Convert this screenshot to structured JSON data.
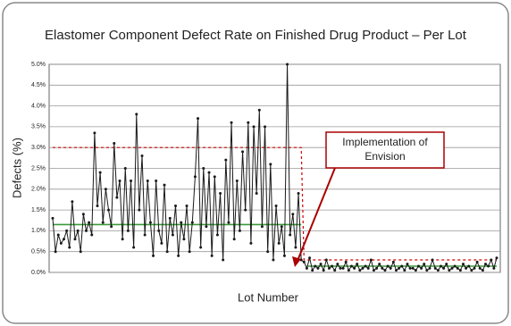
{
  "chart_data": {
    "type": "line",
    "title": "Elastomer Component Defect Rate on Finished Drug Product – Per Lot",
    "x_label": "Lot Number",
    "y_label": "Defects (%)",
    "annotation": [
      "Implementation of",
      "Envision"
    ],
    "ylim": [
      0,
      5
    ],
    "yticks": [
      {
        "value": 0,
        "label": "0.0%"
      },
      {
        "value": 0.5,
        "label": "0.5%"
      },
      {
        "value": 1,
        "label": "1.0%"
      },
      {
        "value": 1.5,
        "label": "1.5%"
      },
      {
        "value": 2,
        "label": "2.0%"
      },
      {
        "value": 2.5,
        "label": "2.5%"
      },
      {
        "value": 3,
        "label": "3.0%"
      },
      {
        "value": 3.5,
        "label": "3.5%"
      },
      {
        "value": 4,
        "label": "4.0%"
      },
      {
        "value": 4.5,
        "label": "4.5%"
      },
      {
        "value": 5,
        "label": "5.0%"
      }
    ],
    "grid": true,
    "series": [
      {
        "color": "#1a1a1a",
        "markers": true,
        "style": "solid",
        "values": [
          1.3,
          0.5,
          0.9,
          0.7,
          0.8,
          1.0,
          0.6,
          1.7,
          0.8,
          1.0,
          0.5,
          1.4,
          1.0,
          1.2,
          0.9,
          3.35,
          1.6,
          2.4,
          1.2,
          2.0,
          1.5,
          1.1,
          3.1,
          1.8,
          2.2,
          0.8,
          2.5,
          1.0,
          2.2,
          0.6,
          3.8,
          1.5,
          2.8,
          0.9,
          2.2,
          1.2,
          0.4,
          2.2,
          1.0,
          0.7,
          2.1,
          0.5,
          1.3,
          0.9,
          1.6,
          0.4,
          1.2,
          0.8,
          1.6,
          0.5,
          1.2,
          2.3,
          3.7,
          0.6,
          2.5,
          1.1,
          2.4,
          0.4,
          2.3,
          0.9,
          1.9,
          0.3,
          2.7,
          1.2,
          3.6,
          0.8,
          2.2,
          1.0,
          2.9,
          1.5,
          3.6,
          0.7,
          3.5,
          1.9,
          3.9,
          1.1,
          3.5,
          0.5,
          2.6,
          0.3,
          1.6,
          0.7,
          1.1,
          0.4,
          5.0,
          0.9,
          1.4,
          0.6,
          1.9,
          0.3,
          0.25,
          0.1,
          0.35,
          0.05,
          0.15,
          0.1,
          0.2,
          0.05,
          0.3,
          0.1,
          0.15,
          0.05,
          0.2,
          0.1,
          0.1,
          0.25,
          0.05,
          0.15,
          0.1,
          0.2,
          0.05,
          0.1,
          0.15,
          0.1,
          0.3,
          0.05,
          0.1,
          0.2,
          0.1,
          0.05,
          0.15,
          0.1,
          0.25,
          0.05,
          0.1,
          0.15,
          0.05,
          0.2,
          0.1,
          0.1,
          0.05,
          0.15,
          0.1,
          0.2,
          0.05,
          0.1,
          0.3,
          0.1,
          0.05,
          0.15,
          0.1,
          0.2,
          0.05,
          0.1,
          0.15,
          0.1,
          0.05,
          0.2,
          0.1,
          0.15,
          0.05,
          0.1,
          0.25,
          0.1,
          0.05,
          0.2,
          0.15,
          0.3,
          0.1,
          0.35
        ]
      },
      {
        "color": "#3a9a3a",
        "markers": false,
        "style": "solid",
        "values": [
          1.15,
          1.15,
          1.15,
          1.15,
          1.15,
          1.15,
          1.15,
          1.15,
          1.15,
          1.15,
          1.15,
          1.15,
          1.15,
          1.15,
          1.15,
          1.15,
          1.15,
          1.15,
          1.15,
          1.15,
          1.15,
          1.15,
          1.15,
          1.15,
          1.15,
          1.15,
          1.15,
          1.15,
          1.15,
          1.15,
          1.15,
          1.15,
          1.15,
          1.15,
          1.15,
          1.15,
          1.15,
          1.15,
          1.15,
          1.15,
          1.15,
          1.15,
          1.15,
          1.15,
          1.15,
          1.15,
          1.15,
          1.15,
          1.15,
          1.15,
          1.15,
          1.15,
          1.15,
          1.15,
          1.15,
          1.15,
          1.15,
          1.15,
          1.15,
          1.15,
          1.15,
          1.15,
          1.15,
          1.15,
          1.15,
          1.15,
          1.15,
          1.15,
          1.15,
          1.15,
          1.15,
          1.15,
          1.15,
          1.15,
          1.15,
          1.15,
          1.15,
          1.15,
          1.15,
          1.15,
          1.15,
          1.15,
          1.15,
          1.15,
          1.15,
          1.15,
          1.15,
          1.15,
          1.15,
          1.15,
          null,
          0.15,
          0.15,
          0.15,
          0.15,
          0.15,
          0.15,
          0.15,
          0.15,
          0.15,
          0.15,
          0.15,
          0.15,
          0.15,
          0.15,
          0.15,
          0.15,
          0.15,
          0.15,
          0.15,
          0.15,
          0.15,
          0.15,
          0.15,
          0.15,
          0.15,
          0.15,
          0.15,
          0.15,
          0.15,
          0.15,
          0.15,
          0.15,
          0.15,
          0.15,
          0.15,
          0.15,
          0.15,
          0.15,
          0.15,
          0.15,
          0.15,
          0.15,
          0.15,
          0.15,
          0.15,
          0.15,
          0.15,
          0.15,
          0.15,
          0.15,
          0.15,
          0.15,
          0.15,
          0.15,
          0.15,
          0.15,
          0.15,
          0.15,
          0.15,
          0.15,
          0.15,
          0.15,
          0.15,
          0.15,
          0.15,
          0.15,
          0.15,
          0.15,
          0.15
        ]
      },
      {
        "color": "#d40000",
        "markers": false,
        "style": "dashed",
        "values": [
          3.0,
          3.0,
          3.0,
          3.0,
          3.0,
          3.0,
          3.0,
          3.0,
          3.0,
          3.0,
          3.0,
          3.0,
          3.0,
          3.0,
          3.0,
          3.0,
          3.0,
          3.0,
          3.0,
          3.0,
          3.0,
          3.0,
          3.0,
          3.0,
          3.0,
          3.0,
          3.0,
          3.0,
          3.0,
          3.0,
          3.0,
          3.0,
          3.0,
          3.0,
          3.0,
          3.0,
          3.0,
          3.0,
          3.0,
          3.0,
          3.0,
          3.0,
          3.0,
          3.0,
          3.0,
          3.0,
          3.0,
          3.0,
          3.0,
          3.0,
          3.0,
          3.0,
          3.0,
          3.0,
          3.0,
          3.0,
          3.0,
          3.0,
          3.0,
          3.0,
          3.0,
          3.0,
          3.0,
          3.0,
          3.0,
          3.0,
          3.0,
          3.0,
          3.0,
          3.0,
          3.0,
          3.0,
          3.0,
          3.0,
          3.0,
          3.0,
          3.0,
          3.0,
          3.0,
          3.0,
          3.0,
          3.0,
          3.0,
          3.0,
          3.0,
          3.0,
          3.0,
          3.0,
          3.0,
          3.0,
          0.3,
          0.3,
          0.3,
          0.3,
          0.3,
          0.3,
          0.3,
          0.3,
          0.3,
          0.3,
          0.3,
          0.3,
          0.3,
          0.3,
          0.3,
          0.3,
          0.3,
          0.3,
          0.3,
          0.3,
          0.3,
          0.3,
          0.3,
          0.3,
          0.3,
          0.3,
          0.3,
          0.3,
          0.3,
          0.3,
          0.3,
          0.3,
          0.3,
          0.3,
          0.3,
          0.3,
          0.3,
          0.3,
          0.3,
          0.3,
          0.3,
          0.3,
          0.3,
          0.3,
          0.3,
          0.3,
          0.3,
          0.3,
          0.3,
          0.3,
          0.3,
          0.3,
          0.3,
          0.3,
          0.3,
          0.3,
          0.3,
          0.3,
          0.3,
          0.3,
          0.3,
          0.3,
          0.3,
          0.3,
          0.3,
          0.3,
          0.3,
          0.3,
          0.3,
          0.3
        ]
      }
    ]
  }
}
